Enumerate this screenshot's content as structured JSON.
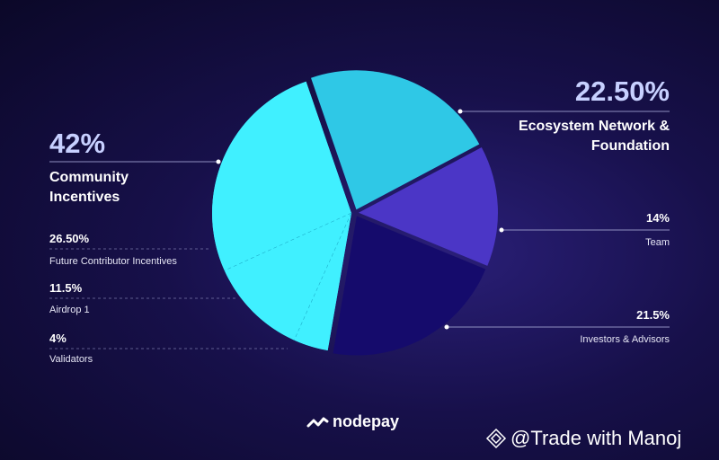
{
  "chart_data": {
    "type": "pie",
    "categories": [
      "Ecosystem Network & Foundation",
      "Team",
      "Investors & Advisors",
      "Community Incentives"
    ],
    "values": [
      22.5,
      14,
      21.5,
      42
    ],
    "value_labels": [
      "22.50%",
      "14%",
      "21.5%",
      "42%"
    ],
    "colors": [
      "#2fc8e6",
      "#4b36c6",
      "#150b6c",
      "#40f0ff"
    ],
    "breakdown": {
      "categories": [
        "Future Contributor Incentives",
        "Airdrop 1",
        "Validators"
      ],
      "values": [
        26.5,
        11.5,
        4
      ],
      "value_labels": [
        "26.50%",
        "11.5%",
        "4%"
      ]
    }
  },
  "footer": {
    "brand": "nodepay",
    "watermark": "@Trade with Manoj"
  }
}
